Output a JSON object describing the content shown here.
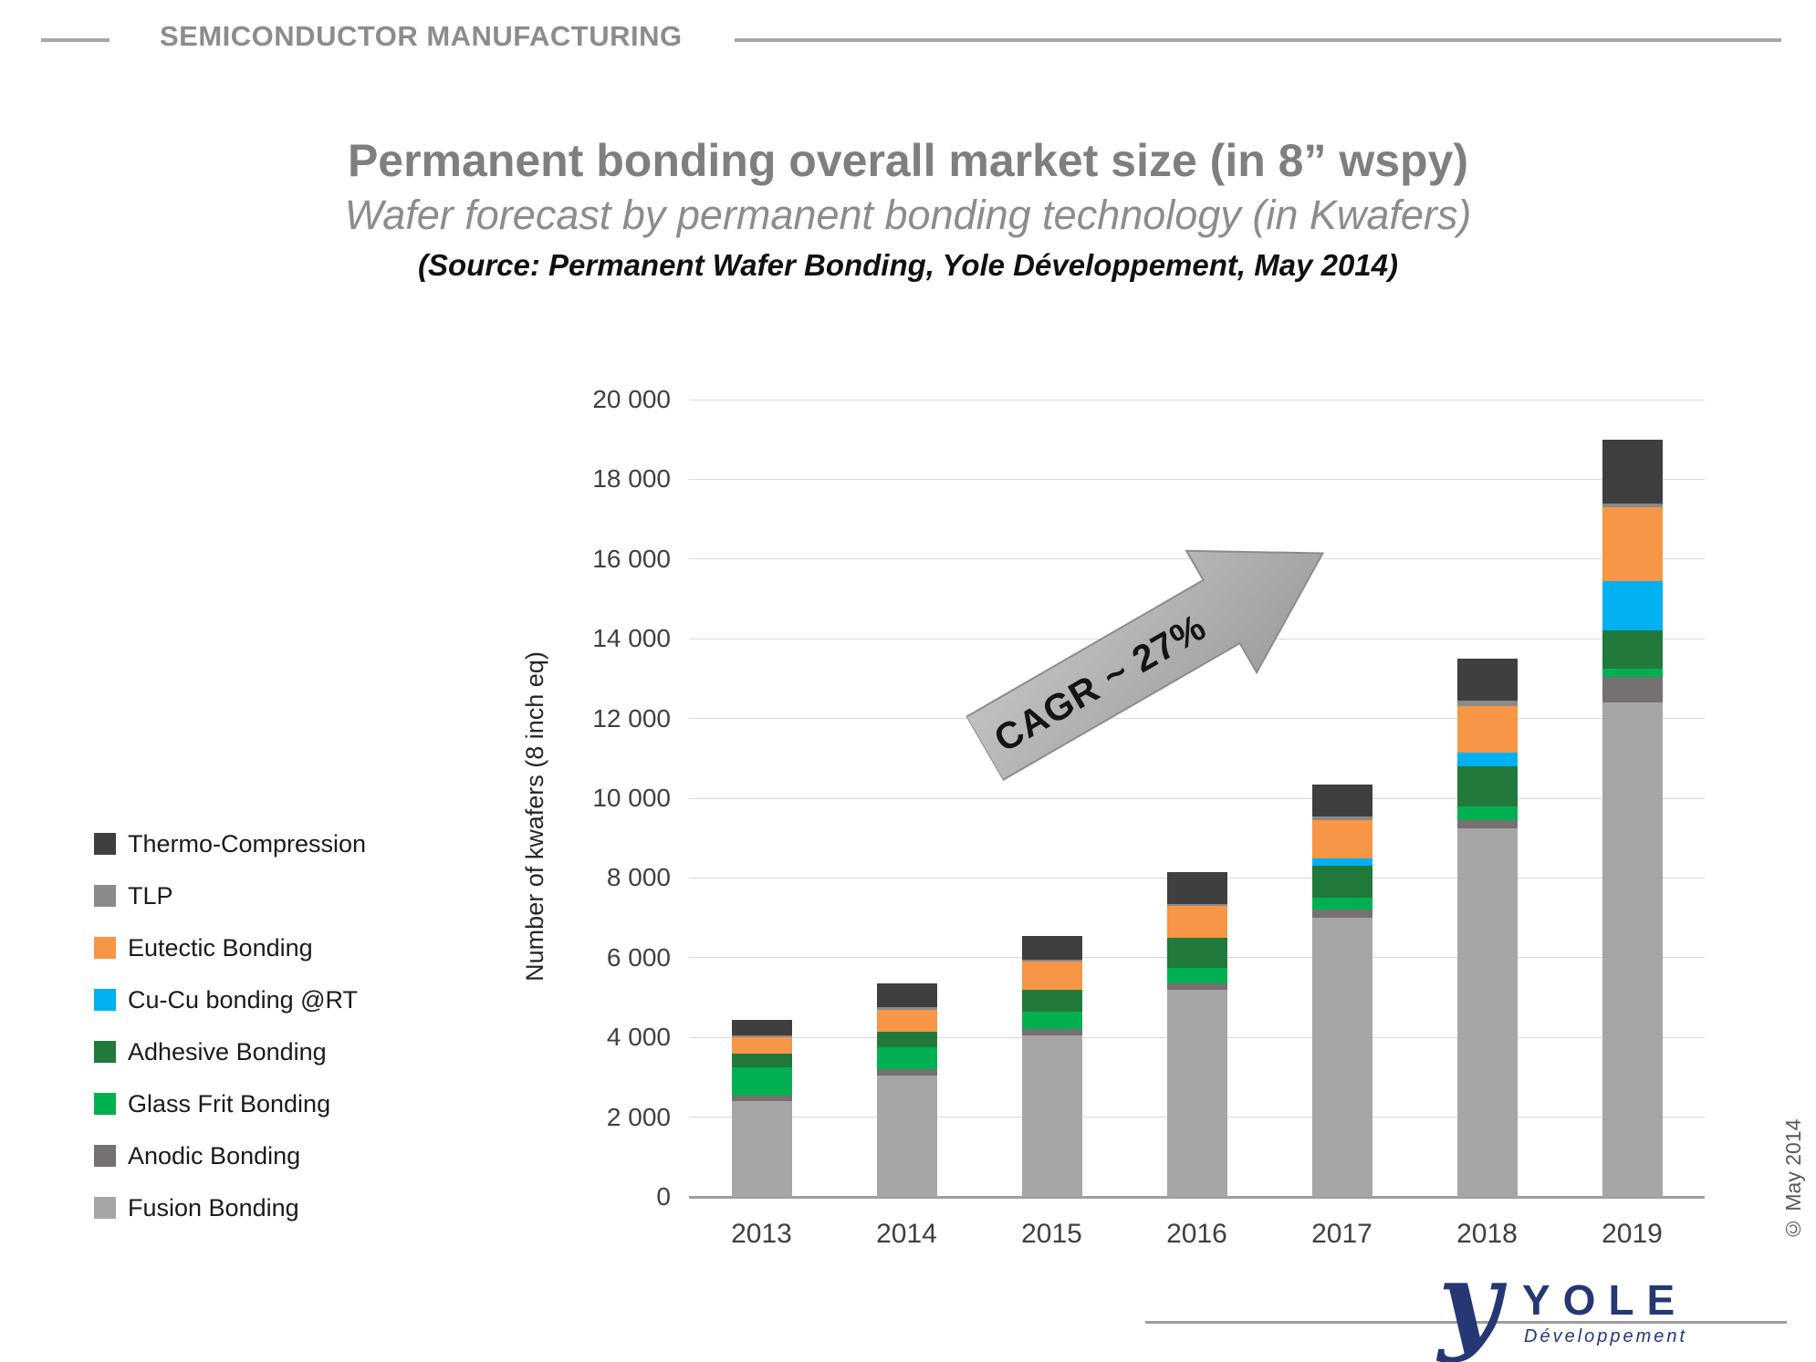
{
  "header": {
    "label": "SEMICONDUCTOR MANUFACTURING"
  },
  "titles": {
    "main": "Permanent bonding overall market size (in 8” wspy)",
    "subtitle": "Wafer forecast by permanent bonding technology (in Kwafers)",
    "source": "(Source: Permanent Wafer Bonding, Yole Développement, May 2014)"
  },
  "annotation": {
    "cagr": "CAGR ~ 27%"
  },
  "footer": {
    "copyright": "© May 2014",
    "logo_mark": "y",
    "logo_text": "YOLE",
    "logo_sub": "Développement"
  },
  "chart_data": {
    "type": "bar",
    "stacked": true,
    "title": "Permanent bonding overall market size (in 8” wspy)",
    "xlabel": "",
    "ylabel": "Number of kwafers (8 inch eq)",
    "ylim": [
      0,
      20000
    ],
    "grid": true,
    "legend_position": "left",
    "categories": [
      "2013",
      "2014",
      "2015",
      "2016",
      "2017",
      "2018",
      "2019"
    ],
    "yticks": [
      {
        "value": 0,
        "label": "0"
      },
      {
        "value": 2000,
        "label": "2 000"
      },
      {
        "value": 4000,
        "label": "4 000"
      },
      {
        "value": 6000,
        "label": "6 000"
      },
      {
        "value": 8000,
        "label": "8 000"
      },
      {
        "value": 10000,
        "label": "10 000"
      },
      {
        "value": 12000,
        "label": "12 000"
      },
      {
        "value": 14000,
        "label": "14 000"
      },
      {
        "value": 16000,
        "label": "16 000"
      },
      {
        "value": 18000,
        "label": "18 000"
      },
      {
        "value": 20000,
        "label": "20 000"
      }
    ],
    "series": [
      {
        "name": "Fusion Bonding",
        "color": "#a6a6a6",
        "values": [
          2400,
          3050,
          4050,
          5200,
          7000,
          9250,
          12400
        ]
      },
      {
        "name": "Anodic Bonding",
        "color": "#757171",
        "values": [
          150,
          150,
          150,
          150,
          200,
          200,
          650
        ]
      },
      {
        "name": "Glass Frit Bonding",
        "color": "#00b050",
        "values": [
          700,
          550,
          450,
          400,
          300,
          350,
          200
        ]
      },
      {
        "name": "Adhesive Bonding",
        "color": "#217a3c",
        "values": [
          350,
          400,
          550,
          750,
          800,
          1000,
          950
        ]
      },
      {
        "name": "Cu-Cu bonding @RT",
        "color": "#00b0f0",
        "values": [
          0,
          0,
          0,
          0,
          200,
          350,
          1250
        ]
      },
      {
        "name": "Eutectic Bonding",
        "color": "#f79646",
        "values": [
          400,
          550,
          700,
          800,
          950,
          1150,
          1850
        ]
      },
      {
        "name": "TLP",
        "color": "#8a8a8a",
        "values": [
          50,
          50,
          50,
          50,
          100,
          150,
          100
        ]
      },
      {
        "name": "Thermo-Compression",
        "color": "#3f3f3f",
        "values": [
          400,
          600,
          600,
          800,
          800,
          1050,
          1600
        ]
      }
    ],
    "legend": [
      {
        "name": "Thermo-Compression",
        "color": "#3f3f3f"
      },
      {
        "name": "TLP",
        "color": "#8a8a8a"
      },
      {
        "name": "Eutectic Bonding",
        "color": "#f79646"
      },
      {
        "name": "Cu-Cu bonding @RT",
        "color": "#00b0f0"
      },
      {
        "name": "Adhesive Bonding",
        "color": "#217a3c"
      },
      {
        "name": "Glass Frit Bonding",
        "color": "#00b050"
      },
      {
        "name": "Anodic Bonding",
        "color": "#757171"
      },
      {
        "name": "Fusion Bonding",
        "color": "#a6a6a6"
      }
    ]
  }
}
